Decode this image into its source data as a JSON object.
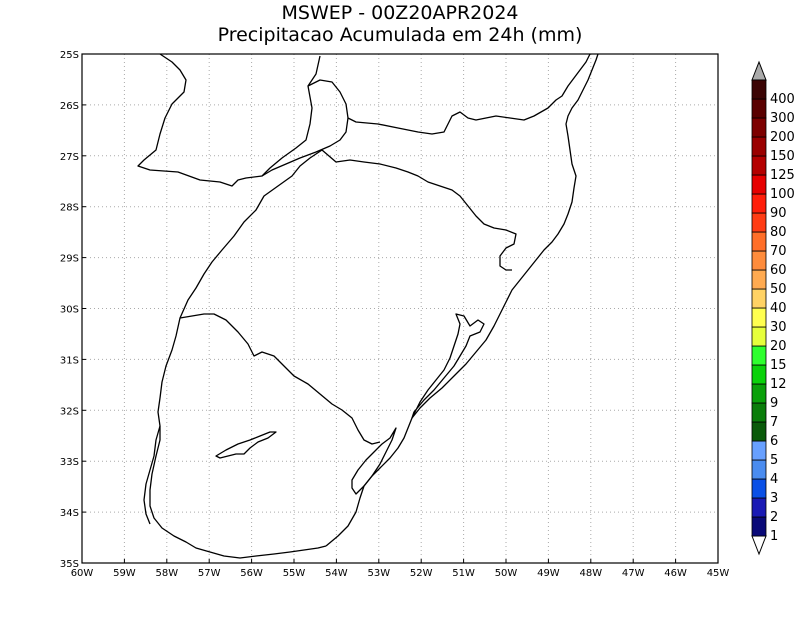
{
  "title": {
    "line1": "MSWEP - 00Z20APR2024",
    "line2": "Precipitacao Acumulada em 24h (mm)"
  },
  "map": {
    "lat_labels": [
      "25S",
      "26S",
      "27S",
      "28S",
      "29S",
      "30S",
      "31S",
      "32S",
      "33S",
      "34S",
      "35S"
    ],
    "lon_labels": [
      "60W",
      "59W",
      "58W",
      "57W",
      "56W",
      "55W",
      "54W",
      "53W",
      "52W",
      "51W",
      "50W",
      "49W",
      "48W",
      "47W",
      "46W",
      "45W"
    ],
    "lon_range": [
      -60,
      -45
    ],
    "lat_range": [
      -35,
      -25
    ],
    "grid": true,
    "grid_style": "dotted",
    "frame_color": "#000000",
    "grid_color": "#aaaaaa"
  },
  "colorbar": {
    "labels": [
      "1",
      "2",
      "3",
      "4",
      "5",
      "6",
      "7",
      "9",
      "12",
      "15",
      "20",
      "30",
      "40",
      "50",
      "60",
      "70",
      "80",
      "90",
      "100",
      "125",
      "150",
      "200",
      "300",
      "400"
    ],
    "colors": [
      "#0a0a78",
      "#1a1ab4",
      "#0a50e6",
      "#4a8cf0",
      "#68a0ff",
      "#0a5a0a",
      "#0a7d0a",
      "#0aa00a",
      "#0ad20a",
      "#2eff2e",
      "#e6ff3c",
      "#ffff50",
      "#ffd264",
      "#ffaa50",
      "#ff8c3c",
      "#ff6e28",
      "#ff3c14",
      "#ff1e0a",
      "#e60000",
      "#b40000",
      "#9a0000",
      "#7d0000",
      "#5a0000",
      "#3c0505"
    ],
    "arrow_low_color": "#ffffff",
    "arrow_high_color": "#aaaaaa"
  }
}
